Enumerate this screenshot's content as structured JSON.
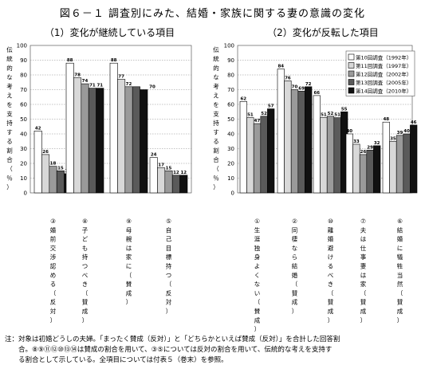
{
  "figure_title": "図６－１  調査別にみた、結婚・家族に関する妻の意識の変化",
  "footnote": {
    "line1": "注：対象は初婚どうしの夫婦。「まったく賛成（反対）」と「どちらかといえば賛成（反対）」を合計した回答割",
    "line2": "合。⑧⑨⑪⑫⑩⑬⑭は賛成の割合を用いて、③⑤については反対の割合を用いて、伝統的な考えを支持す",
    "line3": "る割合として示している。全項目については付表５（巻末）を参照。"
  },
  "chart_data": [
    {
      "type": "bar",
      "title": "（1）変化が継続している項目",
      "ylabel": "伝統的な考えを支持する割合（％）",
      "ylim": [
        0,
        100
      ],
      "yticks": [
        "0",
        "10",
        "20",
        "30",
        "40",
        "50",
        "60",
        "70",
        "80",
        "90",
        "100"
      ],
      "grid": "dotted horizontal",
      "categories": [
        "③婚前交渉認める（反対）",
        "⑧子ども持つべき（賛成）",
        "⑨母親は家に（賛成）",
        "⑤自己目標持つ（反対）"
      ],
      "series": [
        {
          "name": "第10回調査（1992年）",
          "values": [
            42,
            88,
            88,
            24
          ]
        },
        {
          "name": "第11回調査（1997年）",
          "values": [
            26,
            78,
            77,
            17
          ]
        },
        {
          "name": "第12回調査（2002年）",
          "values": [
            18,
            74,
            72,
            15
          ]
        },
        {
          "name": "第13回調査（2005年）",
          "values": [
            15,
            71,
            72,
            12
          ]
        },
        {
          "name": "第14回調査（2010年）",
          "values": [
            13,
            71,
            70,
            12
          ]
        }
      ],
      "data_labels": [
        [
          "42",
          "26",
          "18",
          "15",
          "13"
        ],
        [
          "88",
          "78",
          "74",
          "71",
          "71"
        ],
        [
          "88",
          "77",
          "72",
          "",
          ""
        ],
        [
          "24",
          "17",
          "15",
          "12",
          "12"
        ]
      ],
      "extra_labels": [
        {
          "category": 2,
          "text": "70"
        }
      ]
    },
    {
      "type": "bar",
      "title": "（2）変化が反転した項目",
      "ylabel": "伝統的な考えを支持する割合（％）",
      "ylim": [
        0,
        100
      ],
      "yticks": [
        "0",
        "10",
        "20",
        "30",
        "40",
        "50",
        "60",
        "70",
        "80",
        "90",
        "100"
      ],
      "grid": "dotted horizontal",
      "legend_placement": "top-right",
      "categories": [
        "①生涯独身よくない（賛成）",
        "②同棲なら結婚（賛成）",
        "⑩離婚避けるべき（賛成）",
        "⑦夫は仕事妻は家（賛成）",
        "⑥結婚に犠牲当然（賛成）"
      ],
      "series": [
        {
          "name": "第10回調査（1992年）",
          "values": [
            62,
            84,
            66,
            40,
            48
          ]
        },
        {
          "name": "第11回調査（1997年）",
          "values": [
            51,
            76,
            51,
            33,
            35
          ]
        },
        {
          "name": "第12回調査（2002年）",
          "values": [
            47,
            70,
            52,
            26,
            39
          ]
        },
        {
          "name": "第13回調査（2005年）",
          "values": [
            52,
            69,
            51,
            29,
            40
          ]
        },
        {
          "name": "第14回調査（2010年）",
          "values": [
            57,
            72,
            55,
            32,
            46
          ]
        }
      ],
      "data_labels": [
        [
          "62",
          "51",
          "47",
          "52",
          "57"
        ],
        [
          "84",
          "76",
          "70",
          "69",
          "72"
        ],
        [
          "66",
          "51",
          "52",
          "51",
          "55"
        ],
        [
          "40",
          "33",
          "26",
          "29",
          "32"
        ],
        [
          "48",
          "35",
          "39",
          "40",
          "46"
        ]
      ]
    }
  ],
  "series_colors": [
    "#ffffff",
    "#d8d8d8",
    "#9a9a9a",
    "#5a5a5a",
    "#111111"
  ]
}
